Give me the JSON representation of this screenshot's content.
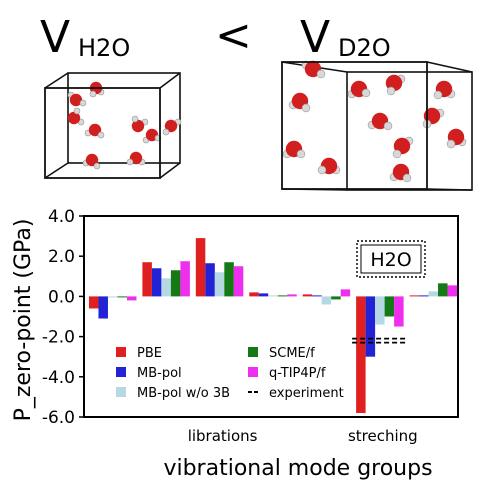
{
  "header": {
    "left_symbol": "V",
    "left_subscript": "H2O",
    "relation": "<",
    "right_symbol": "V",
    "right_subscript": "D2O"
  },
  "colors": {
    "oxygen": "#d11f1f",
    "hydrogen": "#d8d8d8",
    "cell_edge": "#111111"
  },
  "chart_data": {
    "type": "bar",
    "xlabel": "vibrational mode groups",
    "ylabel": "P_zero-point (GPa)",
    "ylim": [
      -6.0,
      4.0
    ],
    "yticks": [
      "4.0",
      "2.0",
      "0.0",
      "-2.0",
      "-4.0",
      "-6.0"
    ],
    "annotation": "H2O",
    "category_labels": [
      {
        "group_index": 2,
        "label": "librations"
      },
      {
        "group_index": 5,
        "label": "streching"
      }
    ],
    "legend_placement": "bottom-left",
    "group_count": 7,
    "series": [
      {
        "name": "PBE",
        "color": "#e02020",
        "values": [
          -0.6,
          1.7,
          2.9,
          0.2,
          0.1,
          -5.8,
          0.05
        ]
      },
      {
        "name": "MB-pol",
        "color": "#2323d6",
        "values": [
          -1.1,
          1.4,
          1.65,
          0.15,
          0.05,
          -3.0,
          0.05
        ]
      },
      {
        "name": "MB-pol w/o 3B",
        "color": "#b6d7e4",
        "values": [
          -0.05,
          0.9,
          1.2,
          0.05,
          -0.4,
          -1.4,
          0.25
        ]
      },
      {
        "name": "SCME/f",
        "color": "#157a15",
        "values": [
          -0.05,
          1.3,
          1.7,
          0.05,
          -0.15,
          -1.0,
          0.65
        ]
      },
      {
        "name": "q-TIP4P/f",
        "color": "#ee30ee",
        "values": [
          -0.2,
          1.75,
          1.5,
          0.1,
          0.35,
          -1.5,
          0.55
        ]
      }
    ],
    "experiment": {
      "name": "experiment",
      "group_index": 5,
      "values": [
        -2.1,
        -2.3
      ]
    }
  }
}
